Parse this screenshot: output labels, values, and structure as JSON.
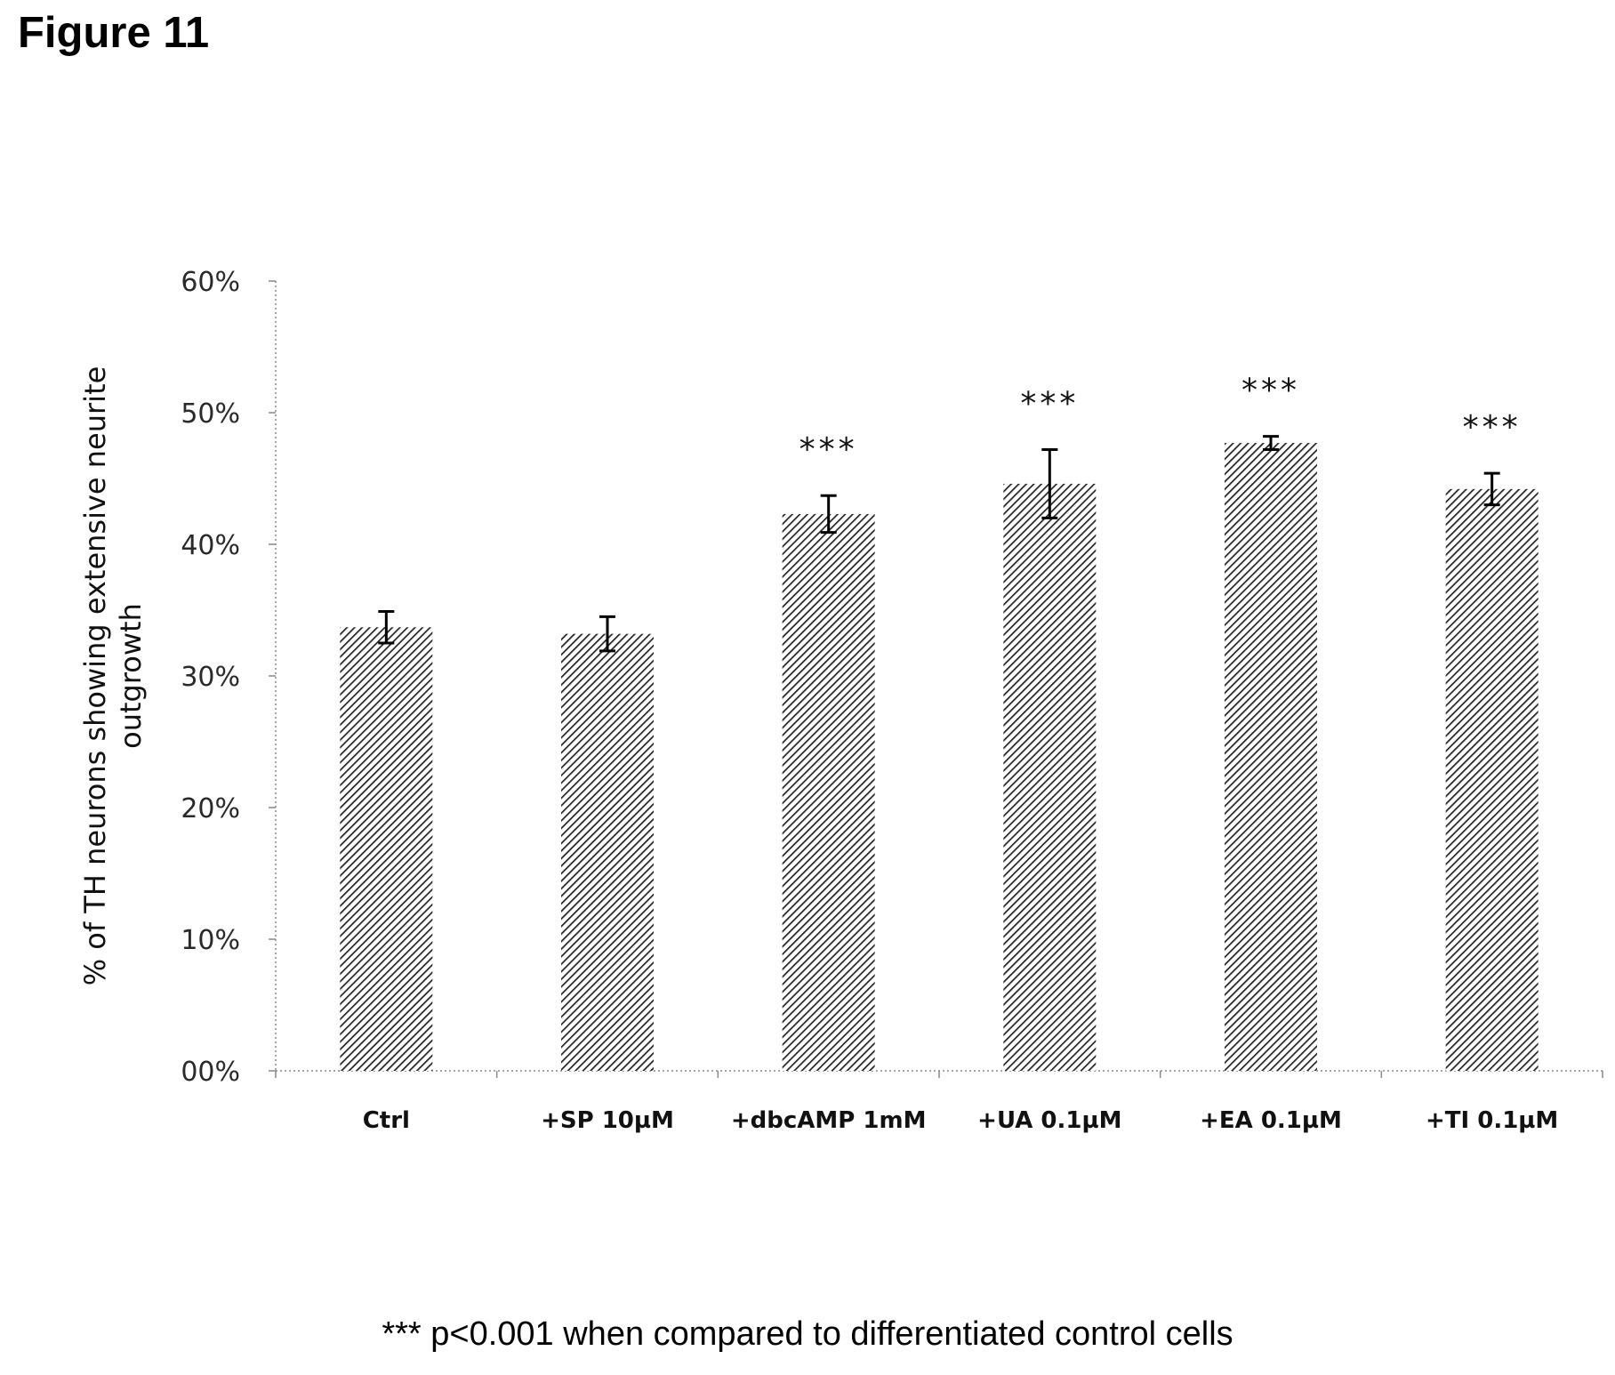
{
  "figure": {
    "label": "Figure 11",
    "footnote": "*** p<0.001 when compared to differentiated control cells"
  },
  "chart_data": {
    "type": "bar",
    "title": "",
    "xlabel": "",
    "ylabel_lines": [
      "% of TH neurons showing extensive neurite",
      "outgrowth"
    ],
    "categories": [
      "Ctrl",
      "+SP 10µM",
      "+dbcAMP 1mM",
      "+UA 0.1µM",
      "+EA 0.1µM",
      "+TI 0.1µM"
    ],
    "values": [
      33.7,
      33.2,
      42.3,
      44.6,
      47.7,
      44.2
    ],
    "errors": [
      1.2,
      1.3,
      1.4,
      2.6,
      0.5,
      1.2
    ],
    "significance": [
      "",
      "",
      "***",
      "***",
      "***",
      "***"
    ],
    "ylim": [
      0,
      60
    ],
    "yticks": [
      0,
      10,
      20,
      30,
      40,
      50,
      60
    ],
    "ytick_labels": [
      "00%",
      "10%",
      "20%",
      "30%",
      "40%",
      "50%",
      "60%"
    ],
    "grid": false,
    "bar_pattern": "diagonal-hatch",
    "colors": {
      "bar_fill": "#ffffff",
      "hatch": "#222222",
      "error_bar": "#000000",
      "axis": "#888888"
    }
  }
}
